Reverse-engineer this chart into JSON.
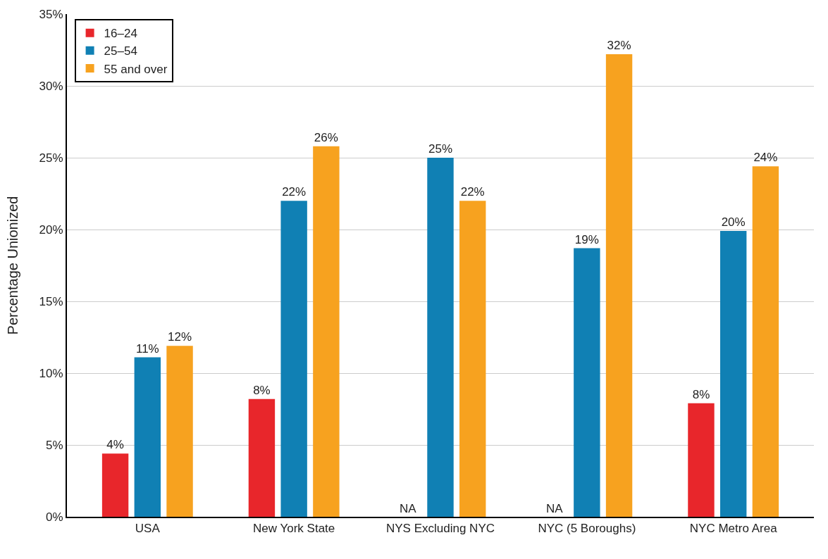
{
  "chart_data": {
    "type": "bar",
    "ylabel": "Percentage Unionized",
    "categories": [
      "USA",
      "New York State",
      "NYS Excluding NYC",
      "NYC (5 Boroughs)",
      "NYC Metro Area"
    ],
    "series": [
      {
        "name": "16–24",
        "color": "#e8262b",
        "values": [
          4.4,
          8.2,
          null,
          null,
          7.9
        ],
        "value_labels": [
          "4%",
          "8%",
          "NA",
          "NA",
          "8%"
        ]
      },
      {
        "name": "25–54",
        "color": "#1080b4",
        "values": [
          11.1,
          22.0,
          25.0,
          18.7,
          19.9
        ],
        "value_labels": [
          "11%",
          "22%",
          "25%",
          "19%",
          "20%"
        ]
      },
      {
        "name": "55 and over",
        "color": "#f7a21f",
        "values": [
          11.9,
          25.8,
          22.0,
          32.2,
          24.4
        ],
        "value_labels": [
          "12%",
          "26%",
          "22%",
          "32%",
          "24%"
        ]
      }
    ],
    "ylim": [
      0,
      35
    ],
    "yticks": [
      {
        "value": 0,
        "label": "0%"
      },
      {
        "value": 5,
        "label": "5%"
      },
      {
        "value": 10,
        "label": "10%"
      },
      {
        "value": 15,
        "label": "15%"
      },
      {
        "value": 20,
        "label": "20%"
      },
      {
        "value": 25,
        "label": "25%"
      },
      {
        "value": 30,
        "label": "30%"
      },
      {
        "value": 35,
        "label": "35%"
      }
    ],
    "grid": "y",
    "legend": "top left"
  }
}
